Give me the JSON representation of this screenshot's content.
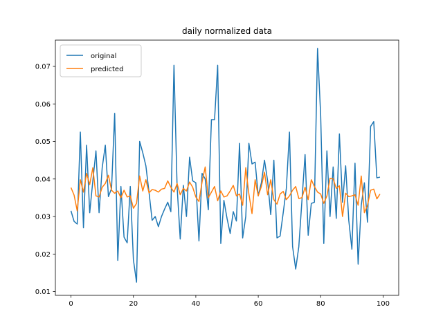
{
  "chart_data": {
    "type": "line",
    "title": "daily normalized data",
    "xlabel": "",
    "ylabel": "",
    "xlim": [
      -5,
      105
    ],
    "ylim": [
      0.009,
      0.077
    ],
    "xticks": [
      0,
      20,
      40,
      60,
      80,
      100
    ],
    "yticks": [
      0.01,
      0.02,
      0.03,
      0.04,
      0.05,
      0.06,
      0.07
    ],
    "ytick_labels": [
      "0.01",
      "0.02",
      "0.03",
      "0.04",
      "0.05",
      "0.06",
      "0.07"
    ],
    "grid": false,
    "legend_position": "top-left",
    "series": [
      {
        "name": "original",
        "color": "#1f77b4",
        "values": [
          0.0315,
          0.0287,
          0.028,
          0.0525,
          0.027,
          0.049,
          0.031,
          0.0395,
          0.0475,
          0.031,
          0.043,
          0.049,
          0.0353,
          0.0375,
          0.0575,
          0.0183,
          0.038,
          0.0245,
          0.023,
          0.038,
          0.0185,
          0.0125,
          0.05,
          0.047,
          0.0435,
          0.0365,
          0.029,
          0.03,
          0.0273,
          0.03,
          0.032,
          0.0338,
          0.0313,
          0.0703,
          0.038,
          0.024,
          0.0383,
          0.03,
          0.0458,
          0.0395,
          0.039,
          0.0235,
          0.0415,
          0.04,
          0.0318,
          0.0558,
          0.0558,
          0.0703,
          0.0228,
          0.0343,
          0.0295,
          0.0255,
          0.0313,
          0.0288,
          0.0495,
          0.0243,
          0.03,
          0.0495,
          0.044,
          0.0445,
          0.0355,
          0.039,
          0.045,
          0.0395,
          0.0305,
          0.045,
          0.0243,
          0.0248,
          0.031,
          0.0375,
          0.0525,
          0.022,
          0.016,
          0.022,
          0.0343,
          0.0465,
          0.025,
          0.0335,
          0.0338,
          0.0748,
          0.057,
          0.0228,
          0.0475,
          0.03,
          0.0432,
          0.0295,
          0.052,
          0.0338,
          0.0435,
          0.029,
          0.0213,
          0.0442,
          0.0173,
          0.033,
          0.039,
          0.0285,
          0.054,
          0.0553,
          0.0403,
          0.0405
        ]
      },
      {
        "name": "predicted",
        "color": "#ff7f0e",
        "values": [
          0.0377,
          0.0357,
          0.0315,
          0.0398,
          0.0365,
          0.0415,
          0.0385,
          0.043,
          0.0355,
          0.0352,
          0.0378,
          0.0388,
          0.041,
          0.037,
          0.0362,
          0.0368,
          0.035,
          0.037,
          0.0352,
          0.0355,
          0.0322,
          0.0335,
          0.0408,
          0.0368,
          0.0398,
          0.0363,
          0.0372,
          0.037,
          0.0365,
          0.0373,
          0.0375,
          0.0395,
          0.0378,
          0.0365,
          0.0388,
          0.0358,
          0.0375,
          0.0368,
          0.0392,
          0.0378,
          0.0352,
          0.034,
          0.0392,
          0.0432,
          0.035,
          0.0365,
          0.038,
          0.0342,
          0.0368,
          0.0352,
          0.0355,
          0.0368,
          0.0383,
          0.0355,
          0.036,
          0.033,
          0.043,
          0.036,
          0.0308,
          0.0398,
          0.0355,
          0.038,
          0.0418,
          0.0358,
          0.0398,
          0.0345,
          0.0333,
          0.036,
          0.0367,
          0.0345,
          0.0355,
          0.037,
          0.038,
          0.0348,
          0.035,
          0.0378,
          0.0345,
          0.0398,
          0.038,
          0.0365,
          0.036,
          0.0335,
          0.0355,
          0.0402,
          0.04,
          0.0375,
          0.0382,
          0.03,
          0.0362,
          0.0353,
          0.0355,
          0.0358,
          0.033,
          0.0408,
          0.031,
          0.033,
          0.037,
          0.0373,
          0.0347,
          0.036
        ]
      }
    ]
  }
}
